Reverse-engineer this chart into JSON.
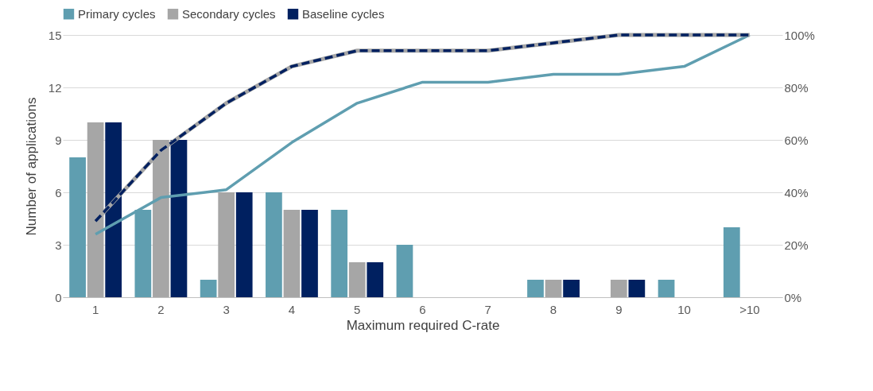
{
  "chart_data": {
    "type": "bar",
    "xlabel": "Maximum required C-rate",
    "ylabel": "Number of applications",
    "categories": [
      "1",
      "2",
      "3",
      "4",
      "5",
      "6",
      "7",
      "8",
      "9",
      "10",
      ">10"
    ],
    "series": [
      {
        "name": "Primary cycles",
        "color": "#5f9eb0",
        "values": [
          8,
          5,
          1,
          6,
          5,
          3,
          0,
          1,
          0,
          1,
          4
        ]
      },
      {
        "name": "Secondary cycles",
        "color": "#a6a6a6",
        "values": [
          10,
          9,
          6,
          5,
          2,
          0,
          0,
          1,
          1,
          0,
          0
        ]
      },
      {
        "name": "Baseline cycles",
        "color": "#002060",
        "values": [
          10,
          9,
          6,
          5,
          2,
          0,
          0,
          1,
          1,
          0,
          0
        ]
      },
      {
        "type": "line",
        "axis": "y2",
        "color": "#5f9eb0",
        "line_style": "solid",
        "values": [
          24,
          38,
          41,
          59,
          74,
          82,
          82,
          85,
          85,
          88,
          100
        ]
      },
      {
        "type": "line",
        "axis": "y2",
        "color": "#a6a6a6",
        "line_style": "solid",
        "values": [
          29,
          56,
          74,
          88,
          94,
          94,
          94,
          97,
          100,
          100,
          100
        ]
      },
      {
        "type": "line",
        "axis": "y2",
        "color": "#002060",
        "line_style": "dashed",
        "values": [
          29,
          56,
          74,
          88,
          94,
          94,
          94,
          97,
          100,
          100,
          100
        ]
      }
    ],
    "ylim": [
      0,
      15
    ],
    "yticks": [
      0,
      3,
      6,
      9,
      12,
      15
    ],
    "y2lim": [
      0,
      100
    ],
    "y2ticks": [
      {
        "value": 0,
        "label": "0%"
      },
      {
        "value": 20,
        "label": "20%"
      },
      {
        "value": 40,
        "label": "40%"
      },
      {
        "value": 60,
        "label": "60%"
      },
      {
        "value": 80,
        "label": "80%"
      },
      {
        "value": 100,
        "label": "100%"
      }
    ],
    "grid": "y",
    "legend": "top",
    "marker": "none"
  }
}
